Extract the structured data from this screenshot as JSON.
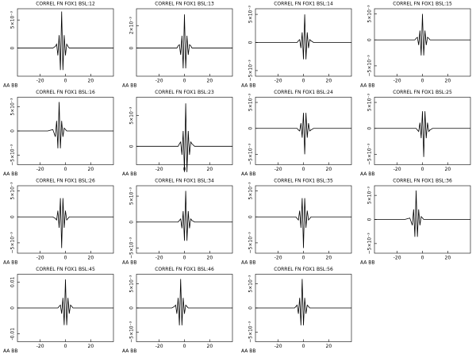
{
  "chart_data": [
    {
      "type": "line",
      "title": "CORREL FN FOX1 BSL:12",
      "label": "AA BB",
      "xlim": [
        -38,
        38
      ],
      "xticks": [
        -20,
        0,
        20
      ],
      "ylim": [
        -0.005,
        0.007
      ],
      "yticks": [
        {
          "value": 0.005,
          "label": "5×10⁻³"
        },
        0
      ],
      "color": "#000000",
      "x": [
        -38,
        -14,
        -10,
        -8,
        -7,
        -6,
        -5,
        -4,
        -3,
        -2,
        -1,
        0,
        1,
        2,
        3,
        4,
        5,
        6,
        8,
        10,
        14,
        38
      ],
      "values": [
        0,
        0,
        0,
        0.0003,
        0.0007,
        -0.0013,
        0.0023,
        -0.0039,
        0.0065,
        -0.0039,
        0.0023,
        -0.0013,
        0.0007,
        0.0003,
        0,
        0,
        0,
        0,
        0,
        0,
        0,
        0
      ]
    },
    {
      "type": "line",
      "title": "CORREL FN FOX1 BSL:13",
      "label": "AA BB",
      "xlim": [
        -38,
        38
      ],
      "xticks": [
        -20,
        0,
        20
      ],
      "ylim": [
        -0.0025,
        0.0035
      ],
      "yticks": [
        {
          "value": 0.002,
          "label": "2×10⁻³"
        },
        0
      ],
      "color": "#000000",
      "x": [
        -38,
        -14,
        -10,
        -8,
        -7,
        -6,
        -5,
        -4,
        -3,
        -2,
        -1,
        0,
        1,
        2,
        3,
        4,
        5,
        6,
        8,
        10,
        14,
        38
      ],
      "values": [
        0,
        0,
        0,
        0,
        0,
        0,
        0.0002,
        0.0003,
        -0.0006,
        0.0011,
        -0.0018,
        0.003,
        -0.0018,
        0.0011,
        -0.0006,
        0.0003,
        0.0002,
        0,
        0,
        0,
        0,
        0
      ]
    },
    {
      "type": "line",
      "title": "CORREL FN FOX1 BSL:14",
      "label": "AA BB",
      "xlim": [
        -38,
        38
      ],
      "xticks": [
        -20,
        0,
        20
      ],
      "ylim": [
        -0.006,
        0.006
      ],
      "yticks": [
        {
          "value": 0.005,
          "label": "5×10⁻³"
        },
        0,
        {
          "value": -0.005,
          "label": "−5×10⁻³"
        }
      ],
      "color": "#000000",
      "x": [
        -38,
        -14,
        -10,
        -8,
        -7,
        -6,
        -5,
        -4,
        -3,
        -2,
        -1,
        0,
        1,
        2,
        3,
        4,
        5,
        6,
        8,
        10,
        14,
        38
      ],
      "values": [
        0,
        0,
        0,
        0,
        0,
        0,
        0,
        0.0003,
        0.0005,
        -0.001,
        0.0018,
        -0.003,
        0.005,
        -0.003,
        0.0018,
        -0.001,
        0.0005,
        0.0003,
        0,
        0,
        0,
        0
      ]
    },
    {
      "type": "line",
      "title": "CORREL FN FOX1 BSL:15",
      "label": "AA BB",
      "xlim": [
        -38,
        38
      ],
      "xticks": [
        -20,
        0,
        20
      ],
      "ylim": [
        -0.007,
        0.006
      ],
      "yticks": [
        {
          "value": 0.005,
          "label": "5×10⁻³"
        },
        0,
        {
          "value": -0.005,
          "label": "−5×10⁻³"
        }
      ],
      "color": "#000000",
      "x": [
        -38,
        -14,
        -10,
        -8,
        -7,
        -6,
        -5,
        -4,
        -3,
        -2,
        -1,
        0,
        1,
        2,
        3,
        4,
        5,
        6,
        8,
        10,
        14,
        38
      ],
      "values": [
        0,
        0,
        0,
        0,
        0,
        0,
        0.0003,
        0.0005,
        -0.001,
        0.0018,
        -0.003,
        0.005,
        -0.003,
        0.0018,
        -0.001,
        0.0005,
        0.0003,
        0,
        0,
        0,
        0,
        0
      ]
    },
    {
      "type": "line",
      "title": "CORREL FN FOX1 BSL:16",
      "label": "AA BB",
      "xlim": [
        -38,
        38
      ],
      "xticks": [
        -20,
        0,
        20
      ],
      "ylim": [
        -0.007,
        0.007
      ],
      "yticks": [
        {
          "value": 0.005,
          "label": "5×10⁻³"
        },
        0,
        {
          "value": -0.005,
          "label": "−5×10⁻³"
        }
      ],
      "color": "#000000",
      "x": [
        -38,
        -14,
        -10,
        -8,
        -7,
        -6,
        -5,
        -4,
        -3,
        -2,
        -1,
        0,
        1,
        2,
        3,
        4,
        5,
        6,
        8,
        10,
        14,
        38
      ],
      "values": [
        0,
        0,
        0.0003,
        -0.0012,
        0.0021,
        -0.0036,
        0.006,
        -0.0036,
        0.0021,
        -0.0012,
        0.0006,
        0.0003,
        0,
        0,
        0,
        0,
        0,
        0,
        0,
        0,
        0,
        0
      ]
    },
    {
      "type": "line",
      "title": "CORREL FN FOX1 BSL:23",
      "label": "AA BB",
      "xlim": [
        -38,
        38
      ],
      "xticks": [
        -20,
        0,
        20
      ],
      "ylim": [
        -0.003,
        0.008
      ],
      "yticks": [
        {
          "value": 0.005,
          "label": "5×10⁻³"
        },
        0
      ],
      "color": "#000000",
      "x": [
        -38,
        -14,
        -10,
        -8,
        -7,
        -6,
        -5,
        -4,
        -3,
        -2,
        -1,
        0,
        1,
        2,
        3,
        4,
        5,
        6,
        8,
        10,
        14,
        38
      ],
      "values": [
        0,
        0,
        0,
        0,
        0,
        0,
        0,
        0.0004,
        0.0007,
        -0.0014,
        0.0025,
        -0.0042,
        0.007,
        -0.0042,
        0.0025,
        -0.0014,
        0.0007,
        0.0004,
        0,
        0,
        0,
        0
      ]
    },
    {
      "type": "line",
      "title": "CORREL FN FOX1 BSL:24",
      "label": "AA BB",
      "xlim": [
        -38,
        38
      ],
      "xticks": [
        -20,
        0,
        20
      ],
      "ylim": [
        -0.007,
        0.006
      ],
      "yticks": [
        {
          "value": 0.005,
          "label": "5×10⁻³"
        },
        0,
        {
          "value": -0.005,
          "label": "−5×10⁻³"
        }
      ],
      "color": "#000000",
      "x": [
        -38,
        -14,
        -10,
        -8,
        -7,
        -6,
        -5,
        -4,
        -3,
        -2,
        -1,
        0,
        1,
        2,
        3,
        4,
        5,
        6,
        8,
        10,
        14,
        38
      ],
      "values": [
        0,
        0,
        0,
        0,
        0,
        0,
        0,
        -0.0003,
        -0.0005,
        0.001,
        -0.0018,
        0.003,
        -0.005,
        0.003,
        -0.0018,
        0.001,
        -0.0005,
        -0.0003,
        0,
        0,
        0,
        0
      ]
    },
    {
      "type": "line",
      "title": "CORREL FN FOX1 BSL:25",
      "label": "AA BB",
      "xlim": [
        -38,
        38
      ],
      "xticks": [
        -20,
        0,
        20
      ],
      "ylim": [
        -0.007,
        0.006
      ],
      "yticks": [
        {
          "value": 0.005,
          "label": "5×10⁻³"
        },
        0,
        {
          "value": -0.005,
          "label": "−5×10⁻³"
        }
      ],
      "color": "#000000",
      "x": [
        -38,
        -14,
        -10,
        -8,
        -7,
        -6,
        -5,
        -4,
        -3,
        -2,
        -1,
        0,
        1,
        2,
        3,
        4,
        5,
        6,
        8,
        10,
        14,
        38
      ],
      "values": [
        0,
        0,
        0,
        0,
        0,
        0,
        0,
        -0.0003,
        -0.0006,
        0.0011,
        -0.0019,
        0.0033,
        -0.0055,
        0.0033,
        -0.0019,
        0.0011,
        -0.0006,
        -0.0003,
        0,
        0,
        0,
        0
      ]
    },
    {
      "type": "line",
      "title": "CORREL FN FOX1 BSL:26",
      "label": "AA BB",
      "xlim": [
        -38,
        38
      ],
      "xticks": [
        -20,
        0,
        20
      ],
      "ylim": [
        -0.007,
        0.006
      ],
      "yticks": [
        {
          "value": 0.005,
          "label": "5×10⁻³"
        },
        0,
        {
          "value": -0.005,
          "label": "−5×10⁻³"
        }
      ],
      "color": "#000000",
      "x": [
        -38,
        -14,
        -10,
        -8,
        -7,
        -6,
        -5,
        -4,
        -3,
        -2,
        -1,
        0,
        1,
        2,
        3,
        4,
        5,
        6,
        8,
        10,
        14,
        38
      ],
      "values": [
        0,
        0,
        0,
        -0.0003,
        -0.0006,
        0.0012,
        -0.0021,
        0.0036,
        -0.006,
        0.0036,
        -0.0021,
        0.0012,
        -0.0006,
        -0.0003,
        0,
        0,
        0,
        0,
        0,
        0,
        0,
        0
      ]
    },
    {
      "type": "line",
      "title": "CORREL FN FOX1 BSL:34",
      "label": "AA BB",
      "xlim": [
        -38,
        38
      ],
      "xticks": [
        -20,
        0,
        20
      ],
      "ylim": [
        -0.006,
        0.007
      ],
      "yticks": [
        {
          "value": 0.005,
          "label": "5×10⁻³"
        },
        0,
        {
          "value": -0.005,
          "label": "−5×10⁻³"
        }
      ],
      "color": "#000000",
      "x": [
        -38,
        -14,
        -10,
        -8,
        -7,
        -6,
        -5,
        -4,
        -3,
        -2,
        -1,
        0,
        1,
        2,
        3,
        4,
        5,
        6,
        8,
        10,
        14,
        38
      ],
      "values": [
        0,
        0,
        0,
        0,
        0,
        0,
        0,
        0.0003,
        0.0006,
        -0.0012,
        0.0021,
        -0.0036,
        0.006,
        -0.0036,
        0.0021,
        -0.0012,
        0.0006,
        0.0003,
        0,
        0,
        0,
        0
      ]
    },
    {
      "type": "line",
      "title": "CORREL FN FOX1 BSL:35",
      "label": "AA BB",
      "xlim": [
        -38,
        38
      ],
      "xticks": [
        -20,
        0,
        20
      ],
      "ylim": [
        -0.007,
        0.006
      ],
      "yticks": [
        {
          "value": 0.005,
          "label": "5×10⁻³"
        },
        0,
        {
          "value": -0.005,
          "label": "−5×10⁻³"
        }
      ],
      "color": "#000000",
      "x": [
        -38,
        -14,
        -10,
        -8,
        -7,
        -6,
        -5,
        -4,
        -3,
        -2,
        -1,
        0,
        1,
        2,
        3,
        4,
        5,
        6,
        8,
        10,
        14,
        38
      ],
      "values": [
        0,
        0,
        0,
        0,
        0,
        0,
        -0.0003,
        -0.0006,
        0.0012,
        -0.0021,
        0.0036,
        -0.006,
        0.0036,
        -0.0021,
        0.0012,
        -0.0006,
        -0.0003,
        0,
        0,
        0,
        0,
        0
      ]
    },
    {
      "type": "line",
      "title": "CORREL FN FOX1 BSL:36",
      "label": "AA BB",
      "xlim": [
        -38,
        38
      ],
      "xticks": [
        -20,
        0,
        20
      ],
      "ylim": [
        -0.007,
        0.007
      ],
      "yticks": [
        {
          "value": 0.005,
          "label": "5×10⁻³"
        },
        0,
        {
          "value": -0.005,
          "label": "−5×10⁻³"
        }
      ],
      "color": "#000000",
      "x": [
        -38,
        -14,
        -10,
        -8,
        -7,
        -6,
        -5,
        -4,
        -3,
        -2,
        -1,
        0,
        1,
        2,
        3,
        4,
        5,
        6,
        8,
        10,
        14,
        38
      ],
      "values": [
        0,
        0,
        0.0003,
        -0.0012,
        0.0021,
        -0.0036,
        0.006,
        -0.0036,
        0.0021,
        -0.0012,
        0.0006,
        0.0003,
        0,
        0,
        0,
        0,
        0,
        0,
        0,
        0,
        0,
        0
      ]
    },
    {
      "type": "line",
      "title": "CORREL FN FOX1 BSL:45",
      "label": "AA BB",
      "xlim": [
        -38,
        38
      ],
      "xticks": [
        -20,
        0,
        20
      ],
      "ylim": [
        -0.013,
        0.013
      ],
      "yticks": [
        0.01,
        0,
        -0.01
      ],
      "color": "#000000",
      "x": [
        -38,
        -14,
        -10,
        -8,
        -7,
        -6,
        -5,
        -4,
        -3,
        -2,
        -1,
        0,
        1,
        2,
        3,
        4,
        5,
        6,
        8,
        10,
        14,
        38
      ],
      "values": [
        0,
        0,
        0,
        0,
        0,
        0,
        0.0006,
        0.0011,
        -0.0022,
        0.0039,
        -0.0066,
        0.011,
        -0.0066,
        0.0039,
        -0.0022,
        0.0011,
        0.0006,
        0,
        0,
        0,
        0,
        0
      ]
    },
    {
      "type": "line",
      "title": "CORREL FN FOX1 BSL:46",
      "label": "AA BB",
      "xlim": [
        -38,
        38
      ],
      "xticks": [
        -20,
        0,
        20
      ],
      "ylim": [
        -0.007,
        0.007
      ],
      "yticks": [
        {
          "value": 0.005,
          "label": "5×10⁻³"
        },
        0,
        {
          "value": -0.005,
          "label": "−5×10⁻³"
        }
      ],
      "color": "#000000",
      "x": [
        -38,
        -14,
        -10,
        -8,
        -7,
        -6,
        -5,
        -4,
        -3,
        -2,
        -1,
        0,
        1,
        2,
        3,
        4,
        5,
        6,
        8,
        10,
        14,
        38
      ],
      "values": [
        0,
        0,
        0,
        0.0003,
        0.0006,
        -0.0012,
        0.0021,
        -0.0036,
        0.006,
        -0.0036,
        0.0021,
        -0.0012,
        0.0006,
        0.0003,
        0,
        0,
        0,
        0,
        0,
        0,
        0,
        0
      ]
    },
    {
      "type": "line",
      "title": "CORREL FN FOX1 BSL:56",
      "label": "AA BB",
      "xlim": [
        -38,
        38
      ],
      "xticks": [
        -20,
        0,
        20
      ],
      "ylim": [
        -0.007,
        0.007
      ],
      "yticks": [
        {
          "value": 0.005,
          "label": "5×10⁻³"
        },
        0,
        {
          "value": -0.005,
          "label": "−5×10⁻³"
        }
      ],
      "color": "#000000",
      "x": [
        -38,
        -14,
        -10,
        -8,
        -7,
        -6,
        -5,
        -4,
        -3,
        -2,
        -1,
        0,
        1,
        2,
        3,
        4,
        5,
        6,
        8,
        10,
        14,
        38
      ],
      "values": [
        0,
        0,
        0,
        0,
        0,
        0.0003,
        0.0006,
        -0.0012,
        0.0021,
        -0.0036,
        0.006,
        -0.0036,
        0.0021,
        -0.0012,
        0.0006,
        0.0003,
        0,
        0,
        0,
        0,
        0,
        0
      ]
    }
  ]
}
